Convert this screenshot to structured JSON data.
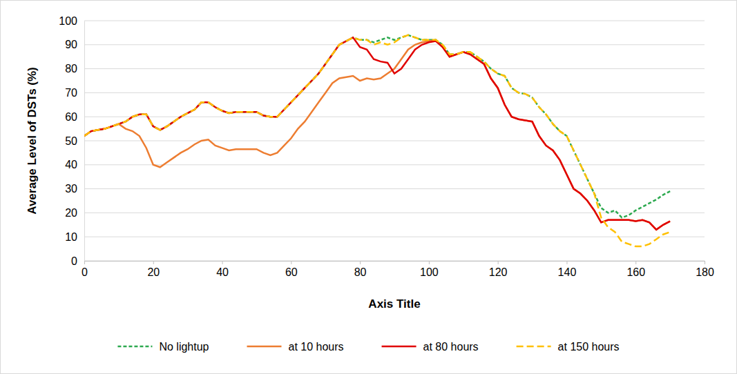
{
  "chart_data": {
    "type": "line",
    "x_label": "Axis Title",
    "y_label": "Average Level of DSTs (%)",
    "x": [
      0,
      2,
      4,
      6,
      8,
      10,
      12,
      14,
      16,
      18,
      20,
      22,
      24,
      26,
      28,
      30,
      32,
      34,
      36,
      38,
      40,
      42,
      44,
      46,
      48,
      50,
      52,
      54,
      56,
      58,
      60,
      62,
      64,
      66,
      68,
      70,
      72,
      74,
      76,
      78,
      80,
      82,
      84,
      86,
      88,
      90,
      92,
      94,
      96,
      98,
      100,
      102,
      104,
      106,
      108,
      110,
      112,
      114,
      116,
      118,
      120,
      122,
      124,
      126,
      128,
      130,
      132,
      134,
      136,
      138,
      140,
      142,
      144,
      146,
      148,
      150,
      152,
      154,
      156,
      158,
      160,
      162,
      164,
      166,
      168,
      170
    ],
    "series": [
      {
        "name": "No lightup",
        "color": "#2ca94f",
        "line_style": "dotted",
        "values": [
          52,
          54,
          54.5,
          55,
          56,
          57,
          58,
          60,
          61,
          61,
          56,
          54.5,
          56,
          58,
          60,
          61.5,
          63,
          66,
          66,
          64,
          62.5,
          61.5,
          62,
          62,
          62,
          62,
          60.5,
          60,
          60,
          63,
          66,
          69,
          72,
          75,
          78,
          82,
          86,
          90,
          91.5,
          93,
          92,
          92,
          91,
          92,
          93,
          92,
          93,
          94,
          93,
          92,
          92,
          92,
          90,
          86,
          86,
          87,
          87,
          85,
          83,
          80,
          78,
          77,
          72,
          70,
          69.5,
          68,
          64,
          61,
          57,
          54,
          52,
          46,
          40,
          34,
          28,
          22,
          20,
          21,
          18,
          19,
          21,
          22.5,
          24,
          25.5,
          27.5,
          29
        ]
      },
      {
        "name": "at 10 hours",
        "color": "#ed7d31",
        "line_style": "solid",
        "values": [
          52,
          54,
          54.5,
          55,
          56,
          57,
          55,
          54,
          52,
          47,
          40,
          39,
          41,
          43,
          45,
          46.5,
          48.5,
          50,
          50.5,
          48,
          47,
          46,
          46.5,
          46.5,
          46.5,
          46.5,
          45,
          44,
          45,
          48,
          51,
          55,
          58,
          62,
          66,
          70,
          74,
          76,
          76.5,
          77,
          75,
          76,
          75.5,
          76,
          78,
          80,
          84,
          88,
          90,
          91,
          91.5,
          92,
          89,
          85,
          86,
          87,
          86,
          84,
          82,
          76,
          72,
          65,
          60,
          59,
          58.5,
          58,
          52,
          48,
          46,
          42,
          36,
          30,
          28,
          25,
          21,
          16,
          17,
          17,
          17,
          17,
          16.5,
          17,
          16,
          13,
          15,
          16.5
        ]
      },
      {
        "name": "at 80 hours",
        "color": "#e00000",
        "line_style": "solid",
        "values": [
          52,
          54,
          54.5,
          55,
          56,
          57,
          58,
          60,
          61,
          61,
          56,
          54.5,
          56,
          58,
          60,
          61.5,
          63,
          66,
          66,
          64,
          62.5,
          61.5,
          62,
          62,
          62,
          62,
          60.5,
          60,
          60,
          63,
          66,
          69,
          72,
          75,
          78,
          82,
          86,
          90,
          91.5,
          93,
          89,
          88,
          84,
          83,
          82.5,
          78,
          80,
          84,
          88,
          90,
          91,
          91.5,
          89,
          85,
          86,
          87,
          86,
          84,
          82,
          76,
          72,
          65,
          60,
          59,
          58.5,
          58,
          52,
          48,
          46,
          42,
          36,
          30,
          28,
          25,
          21,
          16,
          17,
          17,
          17,
          17,
          16.5,
          17,
          16,
          13,
          15,
          16.5
        ]
      },
      {
        "name": "at 150 hours",
        "color": "#ffc000",
        "line_style": "dashed",
        "values": [
          52,
          54,
          54.5,
          55,
          56,
          57,
          58,
          60,
          61,
          61,
          56,
          54.5,
          56,
          58,
          60,
          61.5,
          63,
          66,
          66,
          64,
          62.5,
          61.5,
          62,
          62,
          62,
          62,
          60.5,
          60,
          60,
          63,
          66,
          69,
          72,
          75,
          78,
          82,
          86,
          90,
          91.5,
          93,
          92,
          92,
          90,
          91,
          90,
          91,
          93,
          94,
          93,
          92,
          92,
          92,
          90,
          86,
          86,
          87,
          87,
          85,
          83,
          80,
          78,
          77,
          72,
          70,
          69.5,
          68,
          64,
          61,
          57,
          54,
          52,
          46,
          40,
          34,
          28,
          18,
          14,
          12,
          8,
          7,
          6,
          6,
          7,
          9,
          11,
          12
        ]
      }
    ],
    "xlim": [
      0,
      180
    ],
    "xticks": [
      0,
      20,
      40,
      60,
      80,
      100,
      120,
      140,
      160,
      180
    ],
    "ylim": [
      0,
      100
    ],
    "yticks": [
      0,
      10,
      20,
      30,
      40,
      50,
      60,
      70,
      80,
      90,
      100
    ],
    "grid": true,
    "legend": "bottom"
  }
}
